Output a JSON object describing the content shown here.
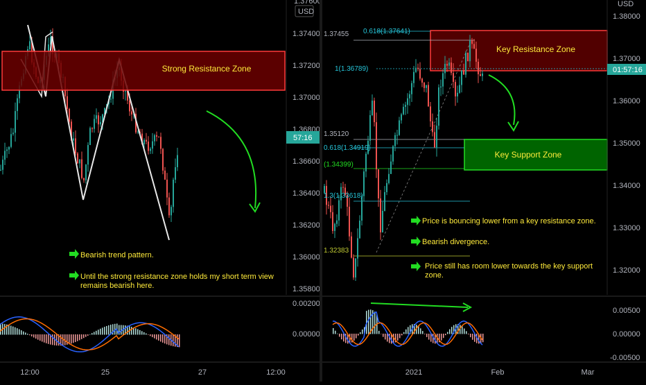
{
  "left": {
    "price_axis": {
      "currency": "USD",
      "partial_top": "1.37600",
      "ticks": [
        "1.37400",
        "1.37200",
        "1.37000",
        "1.36800",
        "1.36600",
        "1.36400",
        "1.36200",
        "1.36000",
        "1.35800"
      ],
      "badge": "57:16"
    },
    "time_axis": [
      "12:00",
      "25",
      "27",
      "12:00"
    ],
    "osc_axis": [
      "0.00200",
      "0.00000"
    ],
    "zone_label": "Strong Resistance Zone",
    "notes": [
      "Bearish trend pattern.",
      "Until the strong resistance zone holds my short term view remains bearish here."
    ]
  },
  "right": {
    "price_axis": {
      "currency": "USD",
      "ticks": [
        "1.38000",
        "1.37000",
        "1.36000",
        "1.35000",
        "1.34000",
        "1.33000",
        "1.32000"
      ],
      "badge_price": "1.36789",
      "badge_time": "01:57:16"
    },
    "time_axis": [
      "2021",
      "Feb",
      "Mar"
    ],
    "osc_axis": [
      "0.00500",
      "0.00000",
      "-0.00500"
    ],
    "fib_labels": [
      "1.37455",
      "0.618(1.37641)",
      "1(1.36789)",
      "1.35120",
      "0.618(1.34919)",
      "(1.34399)",
      "1.3(1.33618)",
      "1.32383"
    ],
    "resistance_label": "Key Resistance Zone",
    "support_label": "Key Support Zone",
    "notes": [
      "Price is bouncing lower from a key resistance zone.",
      "Bearish divergence.",
      "Price still has room lower towards the key support zone."
    ]
  },
  "colors": {
    "up": "#26a69a",
    "down": "#ef5350",
    "resistance_fill": "#5a0000",
    "resistance_border": "#ff3b3b",
    "support_fill": "#006400",
    "support_border": "#22dd22",
    "arrow": "#22dd22",
    "note_text": "#ffeb3b",
    "axis_text": "#b2b5be",
    "zone_text": "#ffeb3b",
    "badge": "#26a69a"
  }
}
